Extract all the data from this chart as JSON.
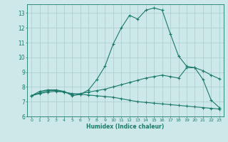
{
  "xlabel": "Humidex (Indice chaleur)",
  "background_color": "#cce8e8",
  "grid_color": "#aacccc",
  "line_color": "#1a7a6a",
  "xlim": [
    -0.5,
    23.5
  ],
  "ylim": [
    6,
    13.6
  ],
  "yticks": [
    6,
    7,
    8,
    9,
    10,
    11,
    12,
    13
  ],
  "xticks": [
    0,
    1,
    2,
    3,
    4,
    5,
    6,
    7,
    8,
    9,
    10,
    11,
    12,
    13,
    14,
    15,
    16,
    17,
    18,
    19,
    20,
    21,
    22,
    23
  ],
  "curve1_x": [
    0,
    1,
    2,
    3,
    4,
    5,
    6,
    7,
    8,
    9,
    10,
    11,
    12,
    13,
    14,
    15,
    16,
    17,
    18,
    19,
    20,
    21,
    22,
    23
  ],
  "curve1_y": [
    7.4,
    7.7,
    7.8,
    7.8,
    7.7,
    7.4,
    7.5,
    7.8,
    8.5,
    9.4,
    10.9,
    12.0,
    12.85,
    12.6,
    13.2,
    13.35,
    13.2,
    11.6,
    10.1,
    9.4,
    9.3,
    8.5,
    7.1,
    6.6
  ],
  "curve2_x": [
    0,
    1,
    2,
    3,
    4,
    5,
    6,
    7,
    8,
    9,
    10,
    11,
    12,
    13,
    14,
    15,
    16,
    17,
    18,
    19,
    20,
    21,
    22,
    23
  ],
  "curve2_y": [
    7.4,
    7.6,
    7.75,
    7.75,
    7.65,
    7.5,
    7.55,
    7.65,
    7.75,
    7.85,
    8.0,
    8.15,
    8.3,
    8.45,
    8.6,
    8.7,
    8.8,
    8.7,
    8.6,
    9.3,
    9.3,
    9.1,
    8.8,
    8.55
  ],
  "curve3_x": [
    0,
    1,
    2,
    3,
    4,
    5,
    6,
    7,
    8,
    9,
    10,
    11,
    12,
    13,
    14,
    15,
    16,
    17,
    18,
    19,
    20,
    21,
    22,
    23
  ],
  "curve3_y": [
    7.4,
    7.55,
    7.65,
    7.7,
    7.65,
    7.55,
    7.5,
    7.45,
    7.4,
    7.35,
    7.3,
    7.2,
    7.1,
    7.0,
    6.95,
    6.9,
    6.85,
    6.8,
    6.75,
    6.7,
    6.65,
    6.6,
    6.55,
    6.5
  ]
}
